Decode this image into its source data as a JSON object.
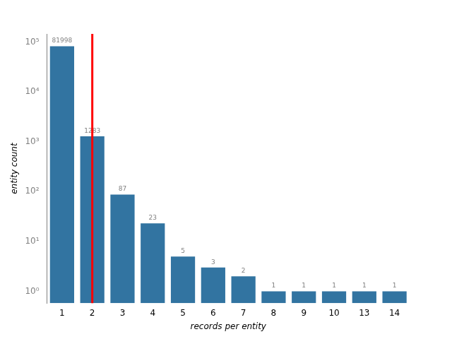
{
  "chart_data": {
    "type": "bar",
    "categories": [
      "1",
      "2",
      "3",
      "4",
      "5",
      "6",
      "7",
      "8",
      "9",
      "10",
      "13",
      "14"
    ],
    "values": [
      81998,
      1283,
      87,
      23,
      5,
      3,
      2,
      1,
      1,
      1,
      1,
      1
    ],
    "color": "#3274a1",
    "x_label": "records per entity",
    "y_label": "entity count",
    "log": "y",
    "ylim": [
      0.58,
      145000
    ],
    "yticks": [
      {
        "value": 1,
        "label": "10⁰"
      },
      {
        "value": 10,
        "label": "10¹"
      },
      {
        "value": 100,
        "label": "10²"
      },
      {
        "value": 1000,
        "label": "10³"
      },
      {
        "value": 10000,
        "label": "10⁴"
      },
      {
        "value": 100000,
        "label": "10⁵"
      }
    ],
    "data_labels": true,
    "grid": false,
    "vline": "2"
  }
}
